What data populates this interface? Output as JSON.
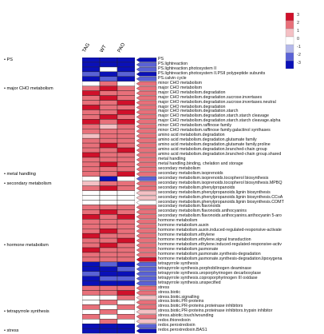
{
  "columns": [
    "TAG",
    "WT",
    "PAO"
  ],
  "legend": {
    "ticks": [
      "3",
      "2",
      "1",
      "0",
      "-1",
      "-2",
      "-3"
    ],
    "colors": [
      "#d0102a",
      "#e8707a",
      "#f4c0c4",
      "#ffffff",
      "#b4b8ea",
      "#5a62d6",
      "#0a10b8"
    ]
  },
  "categories": [
    {
      "label": "PS",
      "row": 0
    },
    {
      "label": "major CHO metabolism",
      "row": 6
    },
    {
      "label": "metal handling",
      "row": 24
    },
    {
      "label": "secondary metabolism",
      "row": 26
    },
    {
      "label": "hormone metabolism",
      "row": 39
    },
    {
      "label": "tetrapyrrole synthesis",
      "row": 53
    },
    {
      "label": "stress",
      "row": 57
    }
  ],
  "rows": [
    {
      "label": "PS",
      "heat": [
        -3,
        -3,
        -3
      ],
      "fc": -2.5
    },
    {
      "label": "PS.lightreaction",
      "heat": [
        -3,
        -3,
        -3
      ],
      "fc": -2.4
    },
    {
      "label": "PS.lightreaction.photosystem II",
      "heat": [
        -3,
        0,
        -3
      ],
      "fc": -2.3
    },
    {
      "label": "PS.lightreaction.photosystem II.PSII polypeptide subunits",
      "heat": [
        -2,
        -3,
        -2
      ],
      "fc": -2.6
    },
    {
      "label": "PS.calvin cycle",
      "heat": [
        -3,
        -2,
        -3
      ],
      "fc": -1.8
    },
    {
      "label": "minor CHO metabolism",
      "heat": [
        0,
        2,
        0
      ],
      "fc": 1.9
    },
    {
      "label": "major CHO metabolism",
      "heat": [
        2,
        3,
        2
      ],
      "fc": 2.5
    },
    {
      "label": "major CHO metabolism.degradation",
      "heat": [
        3,
        2,
        2
      ],
      "fc": 2.3
    },
    {
      "label": "major CHO metabolism.degradation.sucrose.invertases",
      "heat": [
        2,
        3,
        2
      ],
      "fc": 2.4
    },
    {
      "label": "major CHO metabolism.degradation.sucrose.invertases.neutral",
      "heat": [
        2,
        2,
        3
      ],
      "fc": 2.2
    },
    {
      "label": "major CHO metabolism.degradation",
      "heat": [
        3,
        2,
        2
      ],
      "fc": 2.1
    },
    {
      "label": "major CHO metabolism.degradation.starch",
      "heat": [
        2,
        2,
        3
      ],
      "fc": 2.0
    },
    {
      "label": "major CHO metabolism.degradation.starch.starch cleavage",
      "heat": [
        2,
        3,
        2
      ],
      "fc": 2.2
    },
    {
      "label": "major CHO metabolism.degradation.starch.starch cleavage.alpha",
      "heat": [
        3,
        2,
        3
      ],
      "fc": 2.4
    },
    {
      "label": "minor CHO metabolism.raffinose family",
      "heat": [
        2,
        1,
        2
      ],
      "fc": 1.8
    },
    {
      "label": "minor CHO metabolism.raffinose family.galactinol synthases",
      "heat": [
        2,
        2,
        2
      ],
      "fc": 2.0
    },
    {
      "label": "amino acid metabolism.degradation",
      "heat": [
        1,
        2,
        2
      ],
      "fc": 1.7
    },
    {
      "label": "amino acid metabolism.degradation.glutamate family",
      "heat": [
        2,
        2,
        2
      ],
      "fc": 1.9
    },
    {
      "label": "amino acid metabolism.degradation.glutamate family.proline",
      "heat": [
        2,
        3,
        2
      ],
      "fc": 2.1
    },
    {
      "label": "amino acid metabolism.degradation.branched-chain group",
      "heat": [
        2,
        2,
        3
      ],
      "fc": 2.2
    },
    {
      "label": "amino acid metabolism.degradation.branched-chain group.shared",
      "heat": [
        3,
        2,
        2
      ],
      "fc": 2.3
    },
    {
      "label": "metal handling",
      "heat": [
        2,
        2,
        2
      ],
      "fc": 1.9
    },
    {
      "label": "metal handling.binding, chelation and storage",
      "heat": [
        2,
        3,
        2
      ],
      "fc": 2.1
    },
    {
      "label": "secondary metabolism",
      "heat": [
        2,
        2,
        2
      ],
      "fc": 2.0
    },
    {
      "label": "secondary metabolism.isoprenoids",
      "heat": [
        2,
        2,
        3
      ],
      "fc": 2.2
    },
    {
      "label": "secondary metabolism.isoprenoids.tocopherol biosynthesis",
      "heat": [
        0,
        -3,
        0
      ],
      "fc": -2.0
    },
    {
      "label": "secondary metabolism.isoprenoids.tocopherol biosynthesis.MPBQ",
      "heat": [
        1,
        2,
        2
      ],
      "fc": 1.8
    },
    {
      "label": "secondary metabolism.phenylpropanoids",
      "heat": [
        2,
        3,
        2
      ],
      "fc": 2.1
    },
    {
      "label": "secondary metabolism.phenylpropanoids.lignin biosynthesis",
      "heat": [
        0,
        0,
        0
      ],
      "fc": 0.6
    },
    {
      "label": "secondary metabolism.phenylpropanoids.lignin biosynthesis.CCoA",
      "heat": [
        0,
        0,
        0
      ],
      "fc": 0.7
    },
    {
      "label": "secondary metabolism.phenylpropanoids.lignin biosynthesis.COMT",
      "heat": [
        0,
        0,
        0
      ],
      "fc": 0.5
    },
    {
      "label": "secondary metabolism.flavonoids",
      "heat": [
        2,
        2,
        2
      ],
      "fc": 1.9
    },
    {
      "label": "secondary metabolism.flavonoids.anthocyanins",
      "heat": [
        2,
        3,
        2
      ],
      "fc": 2.0
    },
    {
      "label": "secondary metabolism.flavonoids.anthocyanins.anthocyanin 5-aro",
      "heat": [
        3,
        2,
        3
      ],
      "fc": 2.5
    },
    {
      "label": "hormone metabolism",
      "heat": [
        2,
        2,
        2
      ],
      "fc": 2.0
    },
    {
      "label": "hormone metabolism.auxin",
      "heat": [
        2,
        2,
        2
      ],
      "fc": 1.9
    },
    {
      "label": "hormone metabolism.auxin.induced-regulated-responsive-activate",
      "heat": [
        2,
        3,
        2
      ],
      "fc": 2.2
    },
    {
      "label": "hormone metabolism.ethylene",
      "heat": [
        3,
        2,
        2
      ],
      "fc": 2.3
    },
    {
      "label": "hormone metabolism.ethylene.signal transduction",
      "heat": [
        2,
        2,
        3
      ],
      "fc": 2.1
    },
    {
      "label": "hormone metabolism.ethylene.induced-regulated-responsive-activ",
      "heat": [
        2,
        3,
        2
      ],
      "fc": 2.4
    },
    {
      "label": "hormone metabolism.jasmonate",
      "heat": [
        3,
        2,
        2
      ],
      "fc": 2.2
    },
    {
      "label": "hormone metabolism.jasmonate.synthesis-degradation",
      "heat": [
        2,
        2,
        2
      ],
      "fc": 2.0
    },
    {
      "label": "hormone metabolism.jasmonate.synthesis-degradation.lipoxygena",
      "heat": [
        2,
        2,
        2
      ],
      "fc": 2.6
    },
    {
      "label": "tetrapyrrole synthesis",
      "heat": [
        -3,
        -2,
        -3
      ],
      "fc": -2.3
    },
    {
      "label": "tetrapyrrole synthesis.porphobilinogen deaminase",
      "heat": [
        -3,
        -3,
        -2
      ],
      "fc": -2.1
    },
    {
      "label": "tetrapyrrole synthesis.uroporphyrinogen decarboxylase",
      "heat": [
        -2,
        -3,
        -3
      ],
      "fc": -2.2
    },
    {
      "label": "tetrapyrrole synthesis.coproporphyrinogen III oxidase",
      "heat": [
        -3,
        -2,
        -2
      ],
      "fc": -2.0
    },
    {
      "label": "tetrapyrrole synthesis.unspecified",
      "heat": [
        -3,
        -3,
        -3
      ],
      "fc": -2.4
    },
    {
      "label": "stress",
      "heat": [
        2,
        2,
        2
      ],
      "fc": 1.9
    },
    {
      "label": "stress.biotic",
      "heat": [
        2,
        2,
        3
      ],
      "fc": 2.1
    },
    {
      "label": "stress.biotic.signalling",
      "heat": [
        0,
        0,
        2
      ],
      "fc": 1.4
    },
    {
      "label": "stress.biotic.PR-proteins",
      "heat": [
        0,
        2,
        0
      ],
      "fc": 1.6
    },
    {
      "label": "stress.biotic.PR-proteins.proteinase inhibitors",
      "heat": [
        2,
        0,
        2
      ],
      "fc": 1.8
    },
    {
      "label": "stress.biotic.PR-proteins.proteinase inhibitors.trypsin inhibitor",
      "heat": [
        0,
        2,
        0
      ],
      "fc": 1.5
    },
    {
      "label": "stress.abiotic.touch/wounding",
      "heat": [
        2,
        0,
        2
      ],
      "fc": 1.7
    },
    {
      "label": "redox.thioredoxin",
      "heat": [
        0,
        2,
        0
      ],
      "fc": 1.3
    },
    {
      "label": "redox.peroxiredoxin",
      "heat": [
        -3,
        -3,
        -3
      ],
      "fc": -2.2
    },
    {
      "label": "redox.peroxiredoxin.BAS1",
      "heat": [
        -3,
        -3,
        -3
      ],
      "fc": -2.5
    }
  ]
}
